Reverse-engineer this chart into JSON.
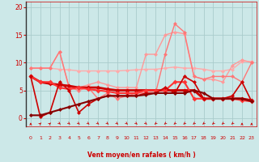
{
  "background_color": "#cce8e8",
  "grid_color": "#aacccc",
  "xlabel": "Vent moyen/en rafales ( km/h )",
  "xlim": [
    -0.5,
    23.5
  ],
  "ylim": [
    -1.5,
    21
  ],
  "yticks": [
    0,
    5,
    10,
    15,
    20
  ],
  "x_ticks": [
    0,
    1,
    2,
    3,
    4,
    5,
    6,
    7,
    8,
    9,
    10,
    11,
    12,
    13,
    14,
    15,
    16,
    17,
    18,
    19,
    20,
    21,
    22,
    23
  ],
  "series": [
    {
      "y": [
        9.0,
        9.0,
        9.0,
        8.8,
        8.7,
        8.5,
        8.5,
        8.5,
        8.5,
        8.5,
        8.6,
        8.7,
        8.8,
        8.8,
        9.0,
        9.2,
        9.0,
        9.0,
        8.8,
        8.5,
        8.5,
        8.8,
        10.2,
        10.2
      ],
      "color": "#ffaaaa",
      "linewidth": 1.0,
      "markersize": 2.5
    },
    {
      "y": [
        9.0,
        9.0,
        9.0,
        12.0,
        5.5,
        5.5,
        6.0,
        6.5,
        6.0,
        5.5,
        5.5,
        5.5,
        11.5,
        11.5,
        15.0,
        15.5,
        15.2,
        7.5,
        7.0,
        7.0,
        6.5,
        9.5,
        10.5,
        10.0
      ],
      "color": "#ff9999",
      "linewidth": 1.0,
      "markersize": 2.5
    },
    {
      "y": [
        9.0,
        9.0,
        9.0,
        12.0,
        5.5,
        5.0,
        5.5,
        3.5,
        4.5,
        3.5,
        4.0,
        4.5,
        4.5,
        4.5,
        11.5,
        17.0,
        15.5,
        7.5,
        7.0,
        7.5,
        7.5,
        7.5,
        6.5,
        10.0
      ],
      "color": "#ff7777",
      "linewidth": 1.0,
      "markersize": 2.5
    },
    {
      "y": [
        7.5,
        6.5,
        6.2,
        6.0,
        5.8,
        5.5,
        5.5,
        5.5,
        5.2,
        5.0,
        5.0,
        5.0,
        5.0,
        5.0,
        5.0,
        5.0,
        5.0,
        5.0,
        3.5,
        3.5,
        3.5,
        3.5,
        3.5,
        3.2
      ],
      "color": "#cc0000",
      "linewidth": 2.0,
      "markersize": 3.0
    },
    {
      "y": [
        7.5,
        6.5,
        6.5,
        5.5,
        5.2,
        5.5,
        5.2,
        5.0,
        4.8,
        4.5,
        4.5,
        4.5,
        5.0,
        5.0,
        5.0,
        6.5,
        6.5,
        3.5,
        3.5,
        3.5,
        3.5,
        3.5,
        3.2,
        3.0
      ],
      "color": "#ff3333",
      "linewidth": 1.5,
      "markersize": 3.0
    },
    {
      "y": [
        7.5,
        0.2,
        1.0,
        6.5,
        5.0,
        1.0,
        2.5,
        3.5,
        4.0,
        4.0,
        4.0,
        4.0,
        4.5,
        4.5,
        5.5,
        4.5,
        7.5,
        6.5,
        3.5,
        3.5,
        3.5,
        4.0,
        6.5,
        3.0
      ],
      "color": "#cc0000",
      "linewidth": 1.2,
      "markersize": 2.5
    },
    {
      "y": [
        0.5,
        0.5,
        1.0,
        1.5,
        2.0,
        2.5,
        3.0,
        3.5,
        4.0,
        4.0,
        4.0,
        4.0,
        4.2,
        4.5,
        4.5,
        4.5,
        4.5,
        5.0,
        4.5,
        3.5,
        3.5,
        3.5,
        3.5,
        3.0
      ],
      "color": "#880000",
      "linewidth": 1.5,
      "markersize": 2.5
    }
  ],
  "arrow_angles": [
    0,
    45,
    45,
    135,
    135,
    135,
    135,
    135,
    135,
    135,
    135,
    135,
    135,
    225,
    225,
    225,
    225,
    225,
    225,
    225,
    225,
    225,
    0,
    0
  ]
}
